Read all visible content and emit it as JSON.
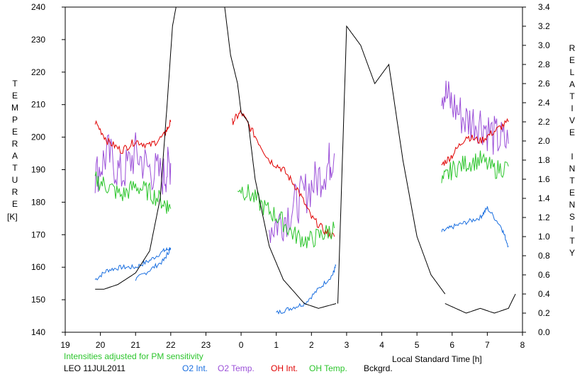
{
  "chart_data": {
    "type": "line",
    "station": "LEO 11JUL2011",
    "note": "Intensities adjusted for PM sensitivity",
    "xlabel": "Local Standard Time [h]",
    "ylabel_left": "TEMPERATURE",
    "ylabel_left_unit": "[K]",
    "ylabel_right": "RELATIVE INTENSITY",
    "x_ticks": [
      "19",
      "20",
      "21",
      "22",
      "23",
      "0",
      "1",
      "2",
      "3",
      "4",
      "5",
      "6",
      "7",
      "8"
    ],
    "y_left_ticks": [
      "140",
      "150",
      "160",
      "170",
      "180",
      "190",
      "200",
      "210",
      "220",
      "230",
      "240"
    ],
    "y_right_ticks": [
      "0.0",
      "0.2",
      "0.4",
      "0.6",
      "0.8",
      "1.0",
      "1.2",
      "1.4",
      "1.6",
      "1.8",
      "2.0",
      "2.2",
      "2.4",
      "2.6",
      "2.8",
      "3.0",
      "3.2",
      "3.4"
    ],
    "xlim": [
      19,
      32
    ],
    "ylim_left": [
      140,
      240
    ],
    "ylim_right": [
      0.0,
      3.4
    ],
    "legend": [
      {
        "name": "O2 Int.",
        "color": "#1a6fe0"
      },
      {
        "name": "O2 Temp.",
        "color": "#9b4fd8"
      },
      {
        "name": "OH Int.",
        "color": "#e00000"
      },
      {
        "name": "OH Temp.",
        "color": "#2cc52c"
      },
      {
        "name": "Bckgrd.",
        "color": "#000000"
      }
    ],
    "series": [
      {
        "name": "O2 Int.",
        "axis": "right",
        "color": "#1a6fe0",
        "segments": [
          {
            "x": [
              19.85,
              20.2,
              20.6,
              21.0,
              21.4,
              21.8,
              22.0
            ],
            "y": [
              0.55,
              0.65,
              0.68,
              0.68,
              0.75,
              0.85,
              0.88
            ]
          },
          {
            "x": [
              21.0,
              21.4,
              21.8,
              22.0
            ],
            "y": [
              0.55,
              0.65,
              0.75,
              0.88
            ]
          },
          {
            "x": [
              1.0,
              1.4,
              1.8,
              2.2,
              2.6,
              2.7
            ],
            "y": [
              0.2,
              0.25,
              0.3,
              0.45,
              0.6,
              0.7
            ]
          },
          {
            "x": [
              5.7,
              6.0,
              6.4,
              6.8,
              7.0,
              7.4,
              7.6
            ],
            "y": [
              1.05,
              1.1,
              1.15,
              1.2,
              1.3,
              1.1,
              0.9
            ]
          }
        ]
      },
      {
        "name": "O2 Temp.",
        "axis": "left",
        "color": "#9b4fd8",
        "segments": [
          {
            "x": [
              19.85,
              20.2,
              20.6,
              21.0,
              21.4,
              21.8,
              22.0
            ],
            "y": [
              188,
              195,
              188,
              195,
              190,
              188,
              192
            ]
          },
          {
            "x": [
              0.8,
              1.2,
              1.6,
              2.0,
              2.4,
              2.65
            ],
            "y": [
              172,
              175,
              180,
              185,
              190,
              195
            ]
          },
          {
            "x": [
              5.7,
              6.0,
              6.4,
              6.8,
              7.2,
              7.6
            ],
            "y": [
              215,
              210,
              205,
              205,
              200,
              198
            ]
          }
        ]
      },
      {
        "name": "OH Int.",
        "axis": "right",
        "color": "#e00000",
        "segments": [
          {
            "x": [
              19.85,
              20.2,
              20.6,
              21.0,
              21.4,
              21.8,
              22.0
            ],
            "y": [
              2.2,
              2.0,
              1.9,
              2.0,
              1.95,
              2.05,
              2.2
            ]
          },
          {
            "x": [
              -0.25,
              0.0,
              0.4,
              0.8,
              1.2,
              1.6,
              2.0,
              2.4,
              2.65
            ],
            "y": [
              2.2,
              2.3,
              2.05,
              1.8,
              1.7,
              1.5,
              1.2,
              1.05,
              1.0
            ]
          },
          {
            "x": [
              5.7,
              6.0,
              6.4,
              6.8,
              7.2,
              7.6
            ],
            "y": [
              1.75,
              1.85,
              2.05,
              2.0,
              2.1,
              2.2
            ]
          }
        ]
      },
      {
        "name": "OH Temp.",
        "axis": "left",
        "color": "#2cc52c",
        "segments": [
          {
            "x": [
              19.85,
              20.2,
              20.6,
              21.0,
              21.4,
              21.8,
              22.0
            ],
            "y": [
              187,
              185,
              182,
              185,
              183,
              180,
              178
            ]
          },
          {
            "x": [
              -0.1,
              0.3,
              0.7,
              1.1,
              1.5,
              1.9,
              2.3,
              2.65
            ],
            "y": [
              185,
              182,
              178,
              175,
              170,
              168,
              170,
              172
            ]
          },
          {
            "x": [
              5.7,
              6.0,
              6.4,
              6.8,
              7.2,
              7.6
            ],
            "y": [
              186,
              190,
              192,
              193,
              190,
              191
            ]
          }
        ]
      },
      {
        "name": "Bckgrd.",
        "axis": "right",
        "color": "#000000",
        "segments": [
          {
            "x": [
              19.85,
              20.1,
              20.5,
              21.0,
              21.4,
              21.7,
              21.9,
              22.05,
              22.2
            ],
            "y": [
              0.45,
              0.45,
              0.5,
              0.62,
              0.85,
              1.4,
              2.4,
              3.2,
              3.5
            ]
          },
          {
            "x": [
              23.5,
              23.7,
              23.9,
              24.0,
              24.2,
              24.4,
              24.8,
              25.2,
              25.8,
              26.2,
              26.7
            ],
            "y": [
              3.5,
              2.9,
              2.6,
              2.3,
              2.2,
              1.6,
              0.9,
              0.55,
              0.3,
              0.25,
              0.3
            ]
          },
          {
            "x": [
              26.75,
              27.0,
              27.4,
              27.8,
              28.2,
              28.6,
              29.0,
              29.4,
              29.8
            ],
            "y": [
              0.3,
              3.2,
              3.0,
              2.6,
              2.8,
              1.8,
              1.0,
              0.6,
              0.4
            ]
          },
          {
            "x": [
              29.8,
              30.1,
              30.4,
              30.8,
              31.2,
              31.6,
              31.8
            ],
            "y": [
              0.3,
              0.25,
              0.2,
              0.25,
              0.2,
              0.25,
              0.4
            ]
          }
        ]
      }
    ]
  }
}
